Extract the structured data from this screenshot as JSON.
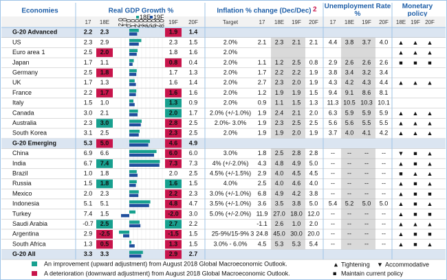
{
  "headers": {
    "economies": "Economies",
    "gdp": "Real GDP Growth %",
    "inflation": "Inflation % change (Dec/Dec)",
    "inflation_note": "2",
    "unemployment": "Unemployment Rate %",
    "monetary": "Monetary policy"
  },
  "subheaders": {
    "gdp": [
      "17",
      "18E",
      "19F",
      "20F"
    ],
    "inflation": [
      "Target",
      "17",
      "18E",
      "19F",
      "20F"
    ],
    "unemployment": [
      "17",
      "18E",
      "19F",
      "20F"
    ],
    "monetary": [
      "18E",
      "19F",
      "20F"
    ]
  },
  "mini_chart": {
    "series": [
      {
        "name": "18E",
        "color": "#17a08f"
      },
      {
        "name": "19F",
        "color": "#1f4e9c"
      }
    ],
    "xlim": [
      -3,
      8
    ],
    "xticks": [
      {
        "value": -2,
        "label": "-2.0"
      },
      {
        "value": -1,
        "label": "-1.0"
      },
      {
        "value": 0,
        "label": "0.0"
      },
      {
        "value": 1,
        "label": "1.0"
      },
      {
        "value": 2,
        "label": "2.0"
      },
      {
        "value": 3,
        "label": "3.0"
      },
      {
        "value": 4,
        "label": "4.0"
      },
      {
        "value": 5,
        "label": "5.0"
      },
      {
        "value": 6,
        "label": "6.0"
      },
      {
        "value": 7,
        "label": "7.0"
      },
      {
        "value": 8,
        "label": "8.0"
      }
    ]
  },
  "rows": [
    {
      "name": "G-20 Advanced",
      "group": true,
      "gdp": [
        "2.2",
        "2.3",
        "1.9",
        "1.4"
      ],
      "rev": [
        null,
        "down"
      ]
    },
    {
      "name": "US",
      "gdp": [
        "2.3",
        "2.9",
        "2.3",
        "1.5"
      ],
      "rev": [
        null,
        null
      ],
      "target": "2.0%",
      "inflation": [
        "2.1",
        "2.3",
        "2.1",
        "2.1"
      ],
      "unemployment": [
        "4.4",
        "3.8",
        "3.7",
        "4.0"
      ],
      "policy": [
        "▲",
        "▲",
        "▲"
      ]
    },
    {
      "name": "Euro area",
      "note": "1",
      "gdp": [
        "2.5",
        "2.0",
        "1.8",
        "1.6"
      ],
      "rev": [
        "down",
        null
      ],
      "target": "2.0%",
      "policy": [
        "▲",
        "▲",
        "▲"
      ]
    },
    {
      "name": "Japan",
      "gdp": [
        "1.7",
        "1.1",
        "0.8",
        "0.4"
      ],
      "rev": [
        null,
        "down"
      ],
      "target": "2.0%",
      "inflation": [
        "1.1",
        "1.2",
        "2.5",
        "0.8"
      ],
      "unemployment": [
        "2.9",
        "2.6",
        "2.6",
        "2.6"
      ],
      "policy": [
        "■",
        "■",
        "■"
      ]
    },
    {
      "name": "Germany",
      "gdp": [
        "2.5",
        "1.8",
        "1.7",
        "1.3"
      ],
      "rev": [
        "down",
        null
      ],
      "target": "2.0%",
      "inflation": [
        "1.7",
        "2.2",
        "2.2",
        "1.9"
      ],
      "unemployment": [
        "3.8",
        "3.4",
        "3.2",
        "3.4"
      ]
    },
    {
      "name": "UK",
      "gdp": [
        "1.7",
        "1.3",
        "1.6",
        "1.4"
      ],
      "rev": [
        null,
        null
      ],
      "target": "2.0%",
      "inflation": [
        "2.7",
        "2.3",
        "2.0",
        "1.9"
      ],
      "unemployment": [
        "4.3",
        "4.2",
        "4.3",
        "4.4"
      ],
      "policy": [
        "▲",
        "▲",
        "▲"
      ]
    },
    {
      "name": "France",
      "gdp": [
        "2.2",
        "1.7",
        "1.6",
        "1.6"
      ],
      "rev": [
        "down",
        "down"
      ],
      "target": "2.0%",
      "inflation": [
        "1.2",
        "1.9",
        "1.9",
        "1.5"
      ],
      "unemployment": [
        "9.4",
        "9.1",
        "8.6",
        "8.1"
      ]
    },
    {
      "name": "Italy",
      "gdp": [
        "1.5",
        "1.0",
        "1.3",
        "0.9"
      ],
      "rev": [
        null,
        "up"
      ],
      "target": "2.0%",
      "inflation": [
        "0.9",
        "1.1",
        "1.5",
        "1.3"
      ],
      "unemployment": [
        "11.3",
        "10.5",
        "10.3",
        "10.1"
      ]
    },
    {
      "name": "Canada",
      "gdp": [
        "3.0",
        "2.1",
        "2.0",
        "1.7"
      ],
      "rev": [
        null,
        "up"
      ],
      "target": "2.0% (+/-1.0%)",
      "inflation": [
        "1.9",
        "2.4",
        "2.1",
        "2.0"
      ],
      "unemployment": [
        "6.3",
        "5.9",
        "5.9",
        "5.9"
      ],
      "policy": [
        "▲",
        "▲",
        "▲"
      ]
    },
    {
      "name": "Australia",
      "gdp": [
        "2.3",
        "3.0",
        "2.8",
        "2.5"
      ],
      "rev": [
        "up",
        "down"
      ],
      "target": "2.0%- 3.0%",
      "inflation": [
        "1.9",
        "2.3",
        "2.5",
        "2.5"
      ],
      "unemployment": [
        "5.6",
        "5.6",
        "5.5",
        "5.5"
      ],
      "policy": [
        "▲",
        "▲",
        "▲"
      ]
    },
    {
      "name": "South Korea",
      "gdp": [
        "3.1",
        "2.5",
        "2.3",
        "2.5"
      ],
      "rev": [
        null,
        "down"
      ],
      "target": "2.0%",
      "inflation": [
        "1.9",
        "1.9",
        "2.0",
        "1.9"
      ],
      "unemployment": [
        "3.7",
        "4.0",
        "4.1",
        "4.2"
      ],
      "policy": [
        "▲",
        "▲",
        "▲"
      ]
    },
    {
      "name": "G-20 Emerging",
      "group": true,
      "gdp": [
        "5.3",
        "5.0",
        "4.6",
        "4.9"
      ],
      "rev": [
        "down",
        "down"
      ]
    },
    {
      "name": "China",
      "gdp": [
        "6.9",
        "6.6",
        "6.0",
        "6.0"
      ],
      "rev": [
        null,
        "down"
      ],
      "target": "3.0%",
      "inflation": [
        "1.8",
        "2.5",
        "2.8",
        "2.8"
      ],
      "unemployment": [
        "--",
        "--",
        "--",
        "--"
      ],
      "policy": [
        "▼",
        "■",
        "▲"
      ]
    },
    {
      "name": "India",
      "gdp": [
        "6.7",
        "7.4",
        "7.3",
        "7.3"
      ],
      "rev": [
        "up",
        "down"
      ],
      "target": "4% (+/-2.0%)",
      "inflation": [
        "4.3",
        "4.8",
        "4.9",
        "5.0"
      ],
      "unemployment": [
        "--",
        "--",
        "--",
        "--"
      ],
      "policy": [
        "▲",
        "■",
        "▲"
      ]
    },
    {
      "name": "Brazil",
      "gdp": [
        "1.0",
        "1.8",
        "2.0",
        "2.5"
      ],
      "rev": [
        null,
        null
      ],
      "target": "4.5% (+/-1.5%)",
      "inflation": [
        "2.9",
        "4.0",
        "4.5",
        "4.5"
      ],
      "unemployment": [
        "--",
        "--",
        "--",
        "--"
      ],
      "policy": [
        "■",
        "▲",
        "▲"
      ]
    },
    {
      "name": "Russia",
      "gdp": [
        "1.5",
        "1.8",
        "1.6",
        "1.5"
      ],
      "rev": [
        "up",
        "up"
      ],
      "target": "4.0%",
      "inflation": [
        "2.5",
        "4.0",
        "4.6",
        "4.0"
      ],
      "unemployment": [
        "--",
        "--",
        "--",
        "--"
      ],
      "policy": [
        "▲",
        "■",
        "▲"
      ]
    },
    {
      "name": "Mexico",
      "gdp": [
        "2.0",
        "2.3",
        "2.2",
        "2.3"
      ],
      "rev": [
        null,
        "down"
      ],
      "target": "3.0% (+/-1.0%)",
      "inflation": [
        "6.8",
        "4.9",
        "4.2",
        "3.8"
      ],
      "unemployment": [
        "--",
        "--",
        "--",
        "--"
      ],
      "policy": [
        "▲",
        "■",
        "■"
      ]
    },
    {
      "name": "Indonesia",
      "gdp": [
        "5.1",
        "5.1",
        "4.8",
        "4.7"
      ],
      "rev": [
        null,
        "down"
      ],
      "target": "3.5% (+/-1.0%)",
      "inflation": [
        "3.6",
        "3.5",
        "3.8",
        "5.0"
      ],
      "unemployment": [
        "5.4",
        "5.2",
        "5.0",
        "5.0"
      ],
      "policy": [
        "▲",
        "■",
        "▲"
      ]
    },
    {
      "name": "Turkey",
      "gdp": [
        "7.4",
        "1.5",
        "-2.0",
        "3.0"
      ],
      "rev": [
        null,
        "down"
      ],
      "target": "5.0% (+/-2.0%)",
      "inflation": [
        "11.9",
        "27.0",
        "18.0",
        "12.0"
      ],
      "unemployment": [
        "--",
        "--",
        "--",
        "--"
      ],
      "policy": [
        "▲",
        "■",
        "■"
      ]
    },
    {
      "name": "Saudi Arabia",
      "gdp": [
        "-0.7",
        "2.5",
        "2.7",
        "2.2"
      ],
      "rev": [
        "up",
        "up"
      ],
      "inflation": [
        "-1.1",
        "2.6",
        "1.0",
        "2.0"
      ],
      "unemployment": [
        "--",
        "--",
        "--",
        "--"
      ],
      "policy": [
        "▲",
        "▲",
        "▲"
      ]
    },
    {
      "name": "Argentina",
      "gdp": [
        "2.9",
        "-2.5",
        "-1.5",
        "1.5"
      ],
      "rev": [
        "down",
        "down"
      ],
      "target": "25-9%/15-9%",
      "target_note": "3",
      "inflation": [
        "24.8",
        "45.0",
        "30.0",
        "20.0"
      ],
      "unemployment": [
        "--",
        "--",
        "--",
        "--"
      ],
      "policy": [
        "▲",
        "■",
        "■"
      ]
    },
    {
      "name": "South Africa",
      "gdp": [
        "1.3",
        "0.5",
        "1.3",
        "1.5"
      ],
      "rev": [
        "down",
        "down"
      ],
      "target": "3.0% - 6.0%",
      "inflation": [
        "4.5",
        "5.3",
        "5.3",
        "5.4"
      ],
      "unemployment": [
        "--",
        "--",
        "--",
        "--"
      ],
      "policy": [
        "▲",
        "■",
        "▲"
      ]
    },
    {
      "name": "G-20 All",
      "group": true,
      "gdp": [
        "3.3",
        "3.3",
        "2.9",
        "2.7"
      ],
      "rev": [
        null,
        "down"
      ]
    }
  ],
  "legend": {
    "improvement": {
      "color": "#17a08f",
      "text": "An improvement (upward adjustment) from August 2018 Global Macroeconomic Outlook."
    },
    "deterioration": {
      "color": "#c8144b",
      "text": "A deterioration (downward adjustment) from August 2018 Global Macroeconomic Outlook."
    },
    "policy": [
      {
        "symbol": "▲",
        "color": "#c8144b",
        "text": "Tightening"
      },
      {
        "symbol": "▼",
        "color": "#1f4e9c",
        "text": "Accommodative"
      },
      {
        "symbol": "■",
        "color": "#bfbfbf",
        "text": "Maintain current policy"
      }
    ]
  }
}
